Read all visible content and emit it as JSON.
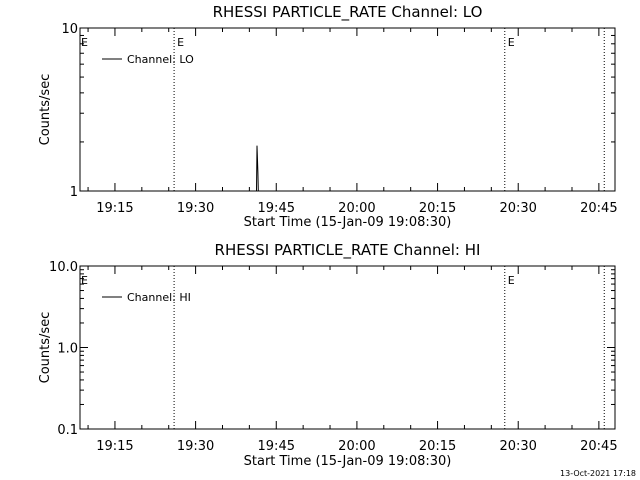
{
  "stamp": "13-Oct-2021 17:18",
  "chart_data": [
    {
      "type": "line",
      "title": "RHESSI PARTICLE_RATE Channel: LO",
      "xlabel": "Start Time (15-Jan-09 19:08:30)",
      "ylabel": "Counts/sec",
      "yscale": "log",
      "xlim": [
        "19:08:30",
        "20:48:00"
      ],
      "ylim": [
        1,
        10
      ],
      "x_ticks": [
        "19:15",
        "19:30",
        "19:45",
        "20:00",
        "20:15",
        "20:30",
        "20:45"
      ],
      "y_ticks": [
        "1",
        "10"
      ],
      "legend": {
        "label": "Channel: LO",
        "position": "top-left"
      },
      "series": [
        {
          "name": "Channel: LO",
          "x": [
            "19:41:00",
            "19:41:20",
            "19:41:25",
            "19:41:35",
            "19:41:40",
            "19:41:50"
          ],
          "y": [
            1,
            1,
            1.9,
            1.3,
            1.0,
            1
          ]
        }
      ],
      "vlines": [
        {
          "x": "19:26:00",
          "label": "E"
        },
        {
          "x": "20:27:30",
          "label": "E"
        },
        {
          "x": "20:46:00",
          "label": ""
        }
      ],
      "edge_label": "E",
      "grid": false
    },
    {
      "type": "line",
      "title": "RHESSI PARTICLE_RATE Channel: HI",
      "xlabel": "Start Time (15-Jan-09 19:08:30)",
      "ylabel": "Counts/sec",
      "yscale": "log",
      "xlim": [
        "19:08:30",
        "20:48:00"
      ],
      "ylim": [
        0.1,
        10
      ],
      "x_ticks": [
        "19:15",
        "19:30",
        "19:45",
        "20:00",
        "20:15",
        "20:30",
        "20:45"
      ],
      "y_ticks": [
        "0.1",
        "1.0",
        "10.0"
      ],
      "legend": {
        "label": "Channel: HI",
        "position": "top-left"
      },
      "series": [
        {
          "name": "Channel: HI",
          "x": [],
          "y": []
        }
      ],
      "vlines": [
        {
          "x": "19:26:00",
          "label": ""
        },
        {
          "x": "20:27:30",
          "label": "E"
        },
        {
          "x": "20:46:00",
          "label": ""
        }
      ],
      "edge_label": "E",
      "grid": false
    }
  ]
}
